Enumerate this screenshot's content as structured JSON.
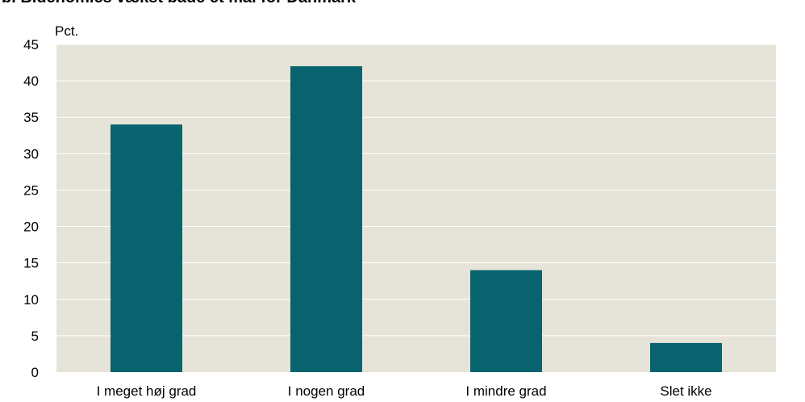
{
  "chart_data": {
    "type": "bar",
    "title": "b. Bidenomics vækst både et mål for Danmark",
    "ylabel": "Pct.",
    "xlabel": "",
    "categories": [
      "I meget høj grad",
      "I nogen grad",
      "I mindre grad",
      "Slet ikke"
    ],
    "values": [
      34,
      42,
      14,
      4
    ],
    "ylim": [
      0,
      45
    ],
    "yticks": [
      0,
      5,
      10,
      15,
      20,
      25,
      30,
      35,
      40,
      45
    ],
    "grid": true,
    "legend": "none",
    "colors": {
      "bar": "#08636f",
      "plot_background": "#e6e3d9",
      "gridline": "#ffffff"
    }
  }
}
